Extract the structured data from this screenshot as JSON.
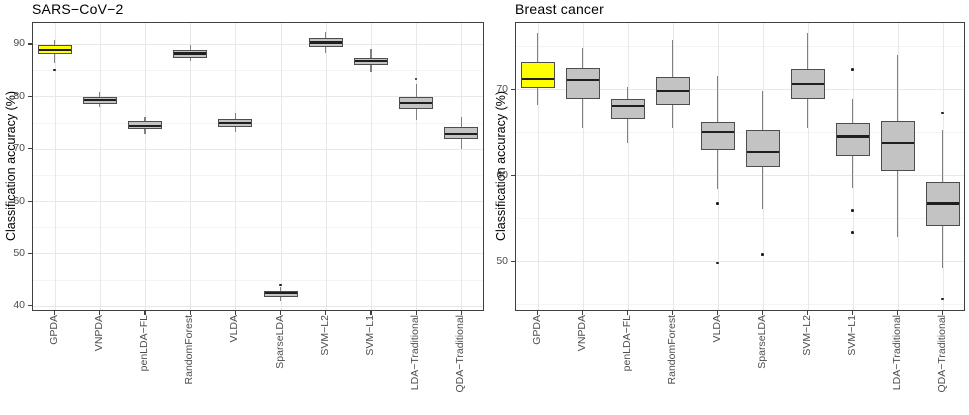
{
  "style": {
    "background": "#ffffff",
    "highlight_fill": "#ffff00",
    "box_fill": "#c3c3c3",
    "box_border": "#4d4d4d",
    "median_color": "#1f1f1f",
    "whisker_color": "#808080",
    "outlier_color": "#1f1f1f",
    "grid_major": "#e8e8e8",
    "grid_minor": "#f4f4f4",
    "panel_border": "#404040",
    "tick_text_color": "#4d4d4d",
    "text_color": "#000000"
  },
  "chart_data": [
    {
      "type": "boxplot",
      "title": "SARS−CoV−2",
      "xlabel": "",
      "ylabel": "Classification accuracy (%)",
      "ylim": [
        39.0,
        94.2
      ],
      "yticks": [
        40,
        50,
        60,
        70,
        80,
        90
      ],
      "grid": "major+minor, light gray on white, black panel border",
      "legend": "none",
      "categories": [
        "GPDA",
        "VNPDA",
        "penLDA−FL",
        "RandomForest",
        "VLDA",
        "SparseLDA",
        "SVM−L2",
        "SVM−L1",
        "LDA−Traditional",
        "QDA−Traditional"
      ],
      "boxes": [
        {
          "label": "GPDA",
          "whisker_low": 86.4,
          "q1": 88.0,
          "median": 88.9,
          "q3": 89.9,
          "whisker_high": 90.8,
          "outliers": [
            85.0
          ],
          "highlight": true
        },
        {
          "label": "VNPDA",
          "whisker_low": 77.9,
          "q1": 78.6,
          "median": 79.3,
          "q3": 79.9,
          "whisker_high": 80.9,
          "outliers": [],
          "highlight": false
        },
        {
          "label": "penLDA−FL",
          "whisker_low": 72.9,
          "q1": 73.8,
          "median": 74.4,
          "q3": 75.3,
          "whisker_high": 76.1,
          "outliers": [],
          "highlight": false
        },
        {
          "label": "RandomForest",
          "whisker_low": 86.7,
          "q1": 87.4,
          "median": 88.2,
          "q3": 88.9,
          "whisker_high": 89.9,
          "outliers": [],
          "highlight": false
        },
        {
          "label": "VLDA",
          "whisker_low": 73.1,
          "q1": 74.2,
          "median": 74.9,
          "q3": 75.7,
          "whisker_high": 76.9,
          "outliers": [],
          "highlight": false
        },
        {
          "label": "SparseLDA",
          "whisker_low": 40.9,
          "q1": 41.6,
          "median": 42.4,
          "q3": 42.9,
          "whisker_high": 43.6,
          "outliers": [
            44.0
          ],
          "highlight": false
        },
        {
          "label": "SVM−L2",
          "whisker_low": 88.3,
          "q1": 89.5,
          "median": 90.3,
          "q3": 91.1,
          "whisker_high": 92.2,
          "outliers": [],
          "highlight": false
        },
        {
          "label": "SVM−L1",
          "whisker_low": 84.6,
          "q1": 85.9,
          "median": 86.7,
          "q3": 87.4,
          "whisker_high": 89.0,
          "outliers": [],
          "highlight": false
        },
        {
          "label": "LDA−Traditional",
          "whisker_low": 75.5,
          "q1": 77.6,
          "median": 78.8,
          "q3": 79.8,
          "whisker_high": 82.3,
          "outliers": [
            83.3
          ],
          "highlight": false
        },
        {
          "label": "QDA−Traditional",
          "whisker_low": 70.0,
          "q1": 71.8,
          "median": 72.9,
          "q3": 74.1,
          "whisker_high": 76.0,
          "outliers": [],
          "highlight": false
        }
      ]
    },
    {
      "type": "boxplot",
      "title": "Breast cancer",
      "xlabel": "",
      "ylabel": "Classification accuracy (%)",
      "ylim": [
        44.2,
        77.8
      ],
      "yticks": [
        50,
        60,
        70
      ],
      "grid": "major+minor, light gray on white, black panel border",
      "legend": "none",
      "categories": [
        "GPDA",
        "VNPDA",
        "penLDA−FL",
        "RandomForest",
        "VLDA",
        "SparseLDA",
        "SVM−L2",
        "SVM−L1",
        "LDA−Traditional",
        "QDA−Traditional"
      ],
      "boxes": [
        {
          "label": "GPDA",
          "whisker_low": 68.2,
          "q1": 70.1,
          "median": 71.2,
          "q3": 73.1,
          "whisker_high": 76.5,
          "outliers": [],
          "highlight": true
        },
        {
          "label": "VNPDA",
          "whisker_low": 65.5,
          "q1": 68.8,
          "median": 71.1,
          "q3": 72.4,
          "whisker_high": 74.8,
          "outliers": [],
          "highlight": false
        },
        {
          "label": "penLDA−FL",
          "whisker_low": 63.7,
          "q1": 66.5,
          "median": 68.0,
          "q3": 68.9,
          "whisker_high": 70.2,
          "outliers": [],
          "highlight": false
        },
        {
          "label": "RandomForest",
          "whisker_low": 65.5,
          "q1": 68.1,
          "median": 69.8,
          "q3": 71.4,
          "whisker_high": 75.7,
          "outliers": [],
          "highlight": false
        },
        {
          "label": "VLDA",
          "whisker_low": 58.4,
          "q1": 62.9,
          "median": 65.0,
          "q3": 66.2,
          "whisker_high": 71.5,
          "outliers": [
            56.7,
            49.8
          ],
          "highlight": false
        },
        {
          "label": "SparseLDA",
          "whisker_low": 56.0,
          "q1": 61.0,
          "median": 62.7,
          "q3": 65.2,
          "whisker_high": 69.8,
          "outliers": [
            50.8
          ],
          "highlight": false
        },
        {
          "label": "SVM−L2",
          "whisker_low": 65.5,
          "q1": 68.8,
          "median": 70.6,
          "q3": 72.3,
          "whisker_high": 76.5,
          "outliers": [],
          "highlight": false
        },
        {
          "label": "SVM−L1",
          "whisker_low": 58.5,
          "q1": 62.2,
          "median": 64.5,
          "q3": 66.0,
          "whisker_high": 68.8,
          "outliers": [
            72.3,
            55.9,
            53.3
          ],
          "highlight": false
        },
        {
          "label": "LDA−Traditional",
          "whisker_low": 52.8,
          "q1": 60.5,
          "median": 63.7,
          "q3": 66.3,
          "whisker_high": 74.0,
          "outliers": [],
          "highlight": false
        },
        {
          "label": "QDA−Traditional",
          "whisker_low": 49.2,
          "q1": 54.1,
          "median": 56.7,
          "q3": 59.2,
          "whisker_high": 65.3,
          "outliers": [
            67.2,
            45.6
          ],
          "highlight": false
        }
      ]
    }
  ]
}
